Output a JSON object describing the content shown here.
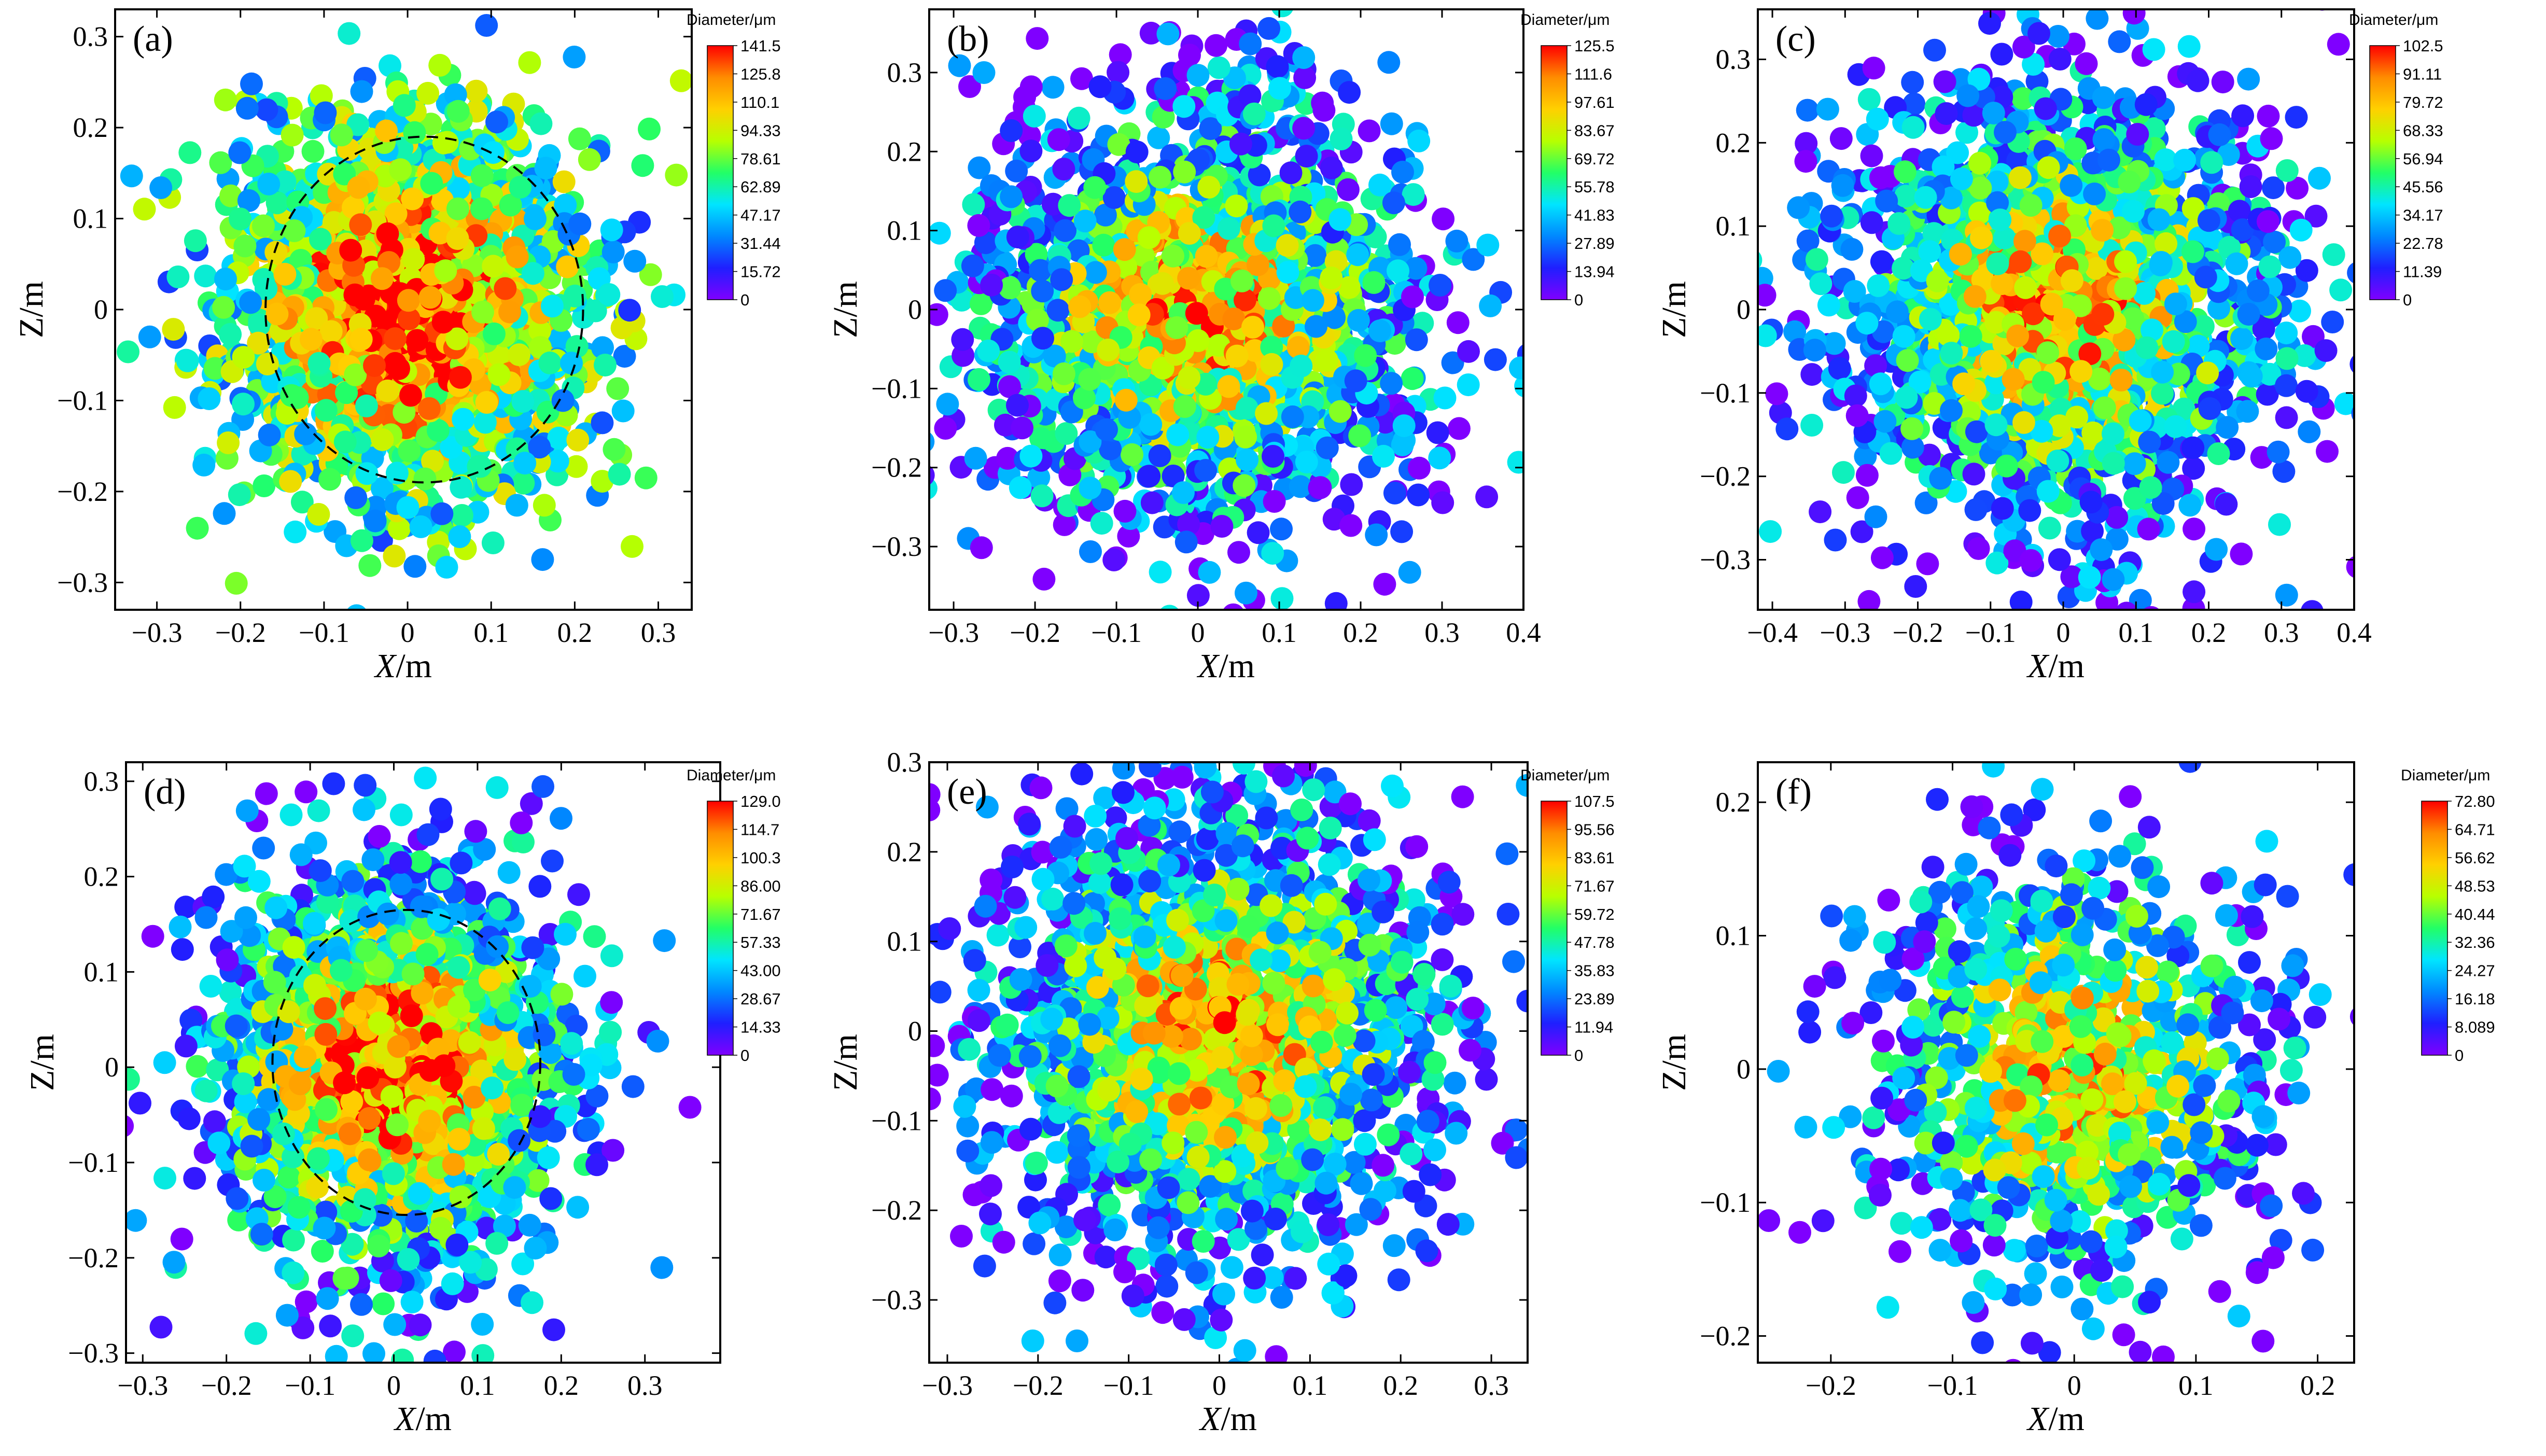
{
  "figure": {
    "panels": [
      {
        "panel_label": "(a)"
      },
      {
        "panel_label": "(b)"
      },
      {
        "panel_label": "(c)"
      },
      {
        "panel_label": "(d)"
      },
      {
        "panel_label": "(e)"
      },
      {
        "panel_label": "(f)"
      }
    ]
  },
  "colormap": [
    "#7f00ff",
    "#1f1fff",
    "#0088ff",
    "#00e5ff",
    "#22ff66",
    "#b8ff00",
    "#ffd000",
    "#ff8c00",
    "#ff0000"
  ],
  "chart_data": [
    {
      "type": "scatter",
      "panel": "(a)",
      "xlabel": "X/m",
      "ylabel": "Z/m",
      "xlim": [
        -0.35,
        0.34
      ],
      "ylim": [
        -0.33,
        0.33
      ],
      "xticks": [
        "-0.3",
        "-0.2",
        "-0.1",
        "0",
        "0.1",
        "0.2",
        "0.3"
      ],
      "yticks": [
        "-0.3",
        "-0.2",
        "-0.1",
        "0",
        "0.1",
        "0.2",
        "0.3"
      ],
      "colorbar": {
        "title": "Diameter/μm",
        "min": 0,
        "max": 141.5,
        "ticks": [
          "141.5",
          "125.8",
          "110.1",
          "94.33",
          "78.61",
          "62.89",
          "47.17",
          "31.44",
          "15.72",
          "0"
        ]
      },
      "dashed_circle": {
        "cx": 0.02,
        "cy": 0.0,
        "r": 0.19
      },
      "point_count": 2200,
      "distribution": {
        "spread_x": 0.1,
        "spread_z": 0.1,
        "core_dmax": 135,
        "edge_dmin": 55
      }
    },
    {
      "type": "scatter",
      "panel": "(b)",
      "xlabel": "X/m",
      "ylabel": "Z/m",
      "xlim": [
        -0.33,
        0.4
      ],
      "ylim": [
        -0.38,
        0.38
      ],
      "xticks": [
        "-0.3",
        "-0.2",
        "-0.1",
        "0",
        "0.1",
        "0.2",
        "0.3",
        "0.4"
      ],
      "yticks": [
        "-0.3",
        "-0.2",
        "-0.1",
        "0",
        "0.1",
        "0.2",
        "0.3"
      ],
      "colorbar": {
        "title": "Diameter/μm",
        "min": 0,
        "max": 125.5,
        "ticks": [
          "125.5",
          "111.6",
          "97.61",
          "83.67",
          "69.72",
          "55.78",
          "41.83",
          "27.89",
          "13.94",
          "0"
        ]
      },
      "point_count": 2000,
      "distribution": {
        "spread_x": 0.13,
        "spread_z": 0.13,
        "core_dmax": 100,
        "edge_dmin": 15
      }
    },
    {
      "type": "scatter",
      "panel": "(c)",
      "xlabel": "X/m",
      "ylabel": "Z/m",
      "xlim": [
        -0.42,
        0.4
      ],
      "ylim": [
        -0.36,
        0.36
      ],
      "xticks": [
        "-0.4",
        "-0.3",
        "-0.2",
        "-0.1",
        "0",
        "0.1",
        "0.2",
        "0.3",
        "0.4"
      ],
      "yticks": [
        "-0.3",
        "-0.2",
        "-0.1",
        "0",
        "0.1",
        "0.2",
        "0.3"
      ],
      "colorbar": {
        "title": "Diameter/μm",
        "min": 0,
        "max": 102.5,
        "ticks": [
          "102.5",
          "91.11",
          "79.72",
          "68.33",
          "56.94",
          "45.56",
          "34.17",
          "22.78",
          "11.39",
          "0"
        ]
      },
      "point_count": 1900,
      "distribution": {
        "spread_x": 0.15,
        "spread_z": 0.13,
        "core_dmax": 80,
        "edge_dmin": 12
      }
    },
    {
      "type": "scatter",
      "panel": "(d)",
      "xlabel": "X/m",
      "ylabel": "Z/m",
      "xlim": [
        -0.32,
        0.39
      ],
      "ylim": [
        -0.31,
        0.32
      ],
      "xticks": [
        "-0.3",
        "-0.2",
        "-0.1",
        "0",
        "0.1",
        "0.2",
        "0.3"
      ],
      "yticks": [
        "-0.3",
        "-0.2",
        "-0.1",
        "0",
        "0.1",
        "0.2",
        "0.3"
      ],
      "colorbar": {
        "title": "Diameter/μm",
        "min": 0,
        "max": 129.0,
        "ticks": [
          "129.0",
          "114.7",
          "100.3",
          "86.00",
          "71.67",
          "57.33",
          "43.00",
          "28.67",
          "14.33",
          "0"
        ]
      },
      "dashed_circle": {
        "cx": 0.015,
        "cy": 0.005,
        "r": 0.16
      },
      "point_count": 1900,
      "distribution": {
        "spread_x": 0.1,
        "spread_z": 0.1,
        "core_dmax": 120,
        "edge_dmin": 25
      }
    },
    {
      "type": "scatter",
      "panel": "(e)",
      "xlabel": "X/m",
      "ylabel": "Z/m",
      "xlim": [
        -0.32,
        0.34
      ],
      "ylim": [
        -0.37,
        0.3
      ],
      "xticks": [
        "-0.3",
        "-0.2",
        "-0.1",
        "0",
        "0.1",
        "0.2",
        "0.3"
      ],
      "yticks": [
        "-0.3",
        "-0.2",
        "-0.1",
        "0",
        "0.1",
        "0.2",
        "0.3"
      ],
      "colorbar": {
        "title": "Diameter/μm",
        "min": 0,
        "max": 107.5,
        "ticks": [
          "107.5",
          "95.56",
          "83.61",
          "71.67",
          "59.72",
          "47.78",
          "35.83",
          "23.89",
          "11.94",
          "0"
        ]
      },
      "point_count": 2000,
      "distribution": {
        "spread_x": 0.12,
        "spread_z": 0.12,
        "core_dmax": 85,
        "edge_dmin": 12
      }
    },
    {
      "type": "scatter",
      "panel": "(f)",
      "xlabel": "X/m",
      "ylabel": "Z/m",
      "xlim": [
        -0.26,
        0.23
      ],
      "ylim": [
        -0.22,
        0.23
      ],
      "xticks": [
        "-0.2",
        "-0.1",
        "0",
        "0.1",
        "0.2"
      ],
      "yticks": [
        "-0.2",
        "-0.1",
        "0",
        "0.1",
        "0.2"
      ],
      "colorbar": {
        "title": "Diameter/μm",
        "min": 0,
        "max": 72.8,
        "ticks": [
          "72.80",
          "64.71",
          "56.62",
          "48.53",
          "40.44",
          "32.36",
          "24.27",
          "16.18",
          "8.089",
          "0"
        ]
      },
      "point_count": 1000,
      "distribution": {
        "spread_x": 0.08,
        "spread_z": 0.08,
        "core_dmax": 55,
        "edge_dmin": 8
      }
    }
  ]
}
